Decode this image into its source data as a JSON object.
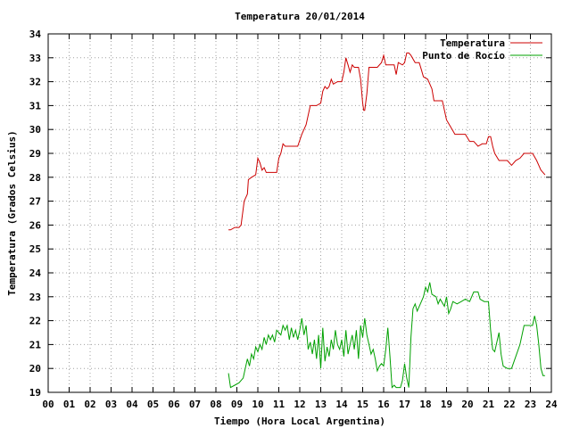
{
  "chart_data": {
    "type": "line",
    "title": "Temperatura 20/01/2014",
    "xlabel": "Tiempo (Hora Local Argentina)",
    "ylabel": "Temperatura (Grados Celsius)",
    "xlim": [
      0,
      24
    ],
    "ylim": [
      19,
      34
    ],
    "x_ticks": [
      "00",
      "01",
      "02",
      "03",
      "04",
      "05",
      "06",
      "07",
      "08",
      "09",
      "10",
      "11",
      "12",
      "13",
      "14",
      "15",
      "16",
      "17",
      "18",
      "19",
      "20",
      "21",
      "22",
      "23",
      "24"
    ],
    "y_ticks": [
      19,
      20,
      21,
      22,
      23,
      24,
      25,
      26,
      27,
      28,
      29,
      30,
      31,
      32,
      33,
      34
    ],
    "grid": true,
    "legend_position": "top-right",
    "series": [
      {
        "name": "Temperatura",
        "color": "#cc0000",
        "points": [
          [
            8.6,
            25.8
          ],
          [
            8.7,
            25.8
          ],
          [
            8.9,
            25.9
          ],
          [
            9.1,
            25.9
          ],
          [
            9.2,
            26.0
          ],
          [
            9.35,
            27.0
          ],
          [
            9.5,
            27.3
          ],
          [
            9.55,
            27.9
          ],
          [
            9.7,
            28.0
          ],
          [
            9.9,
            28.1
          ],
          [
            10.0,
            28.8
          ],
          [
            10.1,
            28.6
          ],
          [
            10.2,
            28.3
          ],
          [
            10.3,
            28.4
          ],
          [
            10.4,
            28.2
          ],
          [
            10.6,
            28.2
          ],
          [
            10.9,
            28.2
          ],
          [
            11.0,
            28.8
          ],
          [
            11.1,
            29.0
          ],
          [
            11.2,
            29.4
          ],
          [
            11.3,
            29.3
          ],
          [
            11.4,
            29.3
          ],
          [
            11.7,
            29.3
          ],
          [
            11.9,
            29.3
          ],
          [
            12.1,
            29.8
          ],
          [
            12.3,
            30.2
          ],
          [
            12.5,
            31.0
          ],
          [
            12.8,
            31.0
          ],
          [
            13.0,
            31.1
          ],
          [
            13.1,
            31.6
          ],
          [
            13.2,
            31.8
          ],
          [
            13.3,
            31.7
          ],
          [
            13.4,
            31.8
          ],
          [
            13.5,
            32.1
          ],
          [
            13.6,
            31.9
          ],
          [
            13.8,
            32.0
          ],
          [
            14.0,
            32.0
          ],
          [
            14.1,
            32.4
          ],
          [
            14.2,
            33.0
          ],
          [
            14.3,
            32.7
          ],
          [
            14.4,
            32.4
          ],
          [
            14.5,
            32.7
          ],
          [
            14.6,
            32.6
          ],
          [
            14.8,
            32.6
          ],
          [
            14.9,
            32.1
          ],
          [
            15.0,
            31.1
          ],
          [
            15.05,
            30.8
          ],
          [
            15.1,
            30.8
          ],
          [
            15.2,
            31.5
          ],
          [
            15.3,
            32.6
          ],
          [
            15.5,
            32.6
          ],
          [
            15.7,
            32.6
          ],
          [
            15.9,
            32.8
          ],
          [
            16.0,
            33.1
          ],
          [
            16.1,
            32.7
          ],
          [
            16.3,
            32.7
          ],
          [
            16.5,
            32.7
          ],
          [
            16.6,
            32.3
          ],
          [
            16.7,
            32.8
          ],
          [
            16.9,
            32.7
          ],
          [
            17.0,
            32.8
          ],
          [
            17.1,
            33.2
          ],
          [
            17.2,
            33.2
          ],
          [
            17.3,
            33.1
          ],
          [
            17.5,
            32.8
          ],
          [
            17.7,
            32.8
          ],
          [
            17.8,
            32.5
          ],
          [
            17.9,
            32.2
          ],
          [
            18.1,
            32.1
          ],
          [
            18.3,
            31.7
          ],
          [
            18.4,
            31.2
          ],
          [
            18.6,
            31.2
          ],
          [
            18.8,
            31.2
          ],
          [
            19.0,
            30.4
          ],
          [
            19.2,
            30.1
          ],
          [
            19.4,
            29.8
          ],
          [
            19.7,
            29.8
          ],
          [
            19.9,
            29.8
          ],
          [
            20.1,
            29.5
          ],
          [
            20.3,
            29.5
          ],
          [
            20.5,
            29.3
          ],
          [
            20.7,
            29.4
          ],
          [
            20.9,
            29.4
          ],
          [
            21.0,
            29.7
          ],
          [
            21.1,
            29.7
          ],
          [
            21.2,
            29.3
          ],
          [
            21.3,
            29.0
          ],
          [
            21.5,
            28.7
          ],
          [
            21.7,
            28.7
          ],
          [
            21.9,
            28.7
          ],
          [
            22.1,
            28.5
          ],
          [
            22.3,
            28.7
          ],
          [
            22.5,
            28.8
          ],
          [
            22.7,
            29.0
          ],
          [
            22.9,
            29.0
          ],
          [
            23.1,
            29.0
          ],
          [
            23.3,
            28.7
          ],
          [
            23.4,
            28.5
          ],
          [
            23.5,
            28.3
          ],
          [
            23.6,
            28.2
          ],
          [
            23.7,
            28.1
          ]
        ]
      },
      {
        "name": "Punto de Rocío",
        "color": "#00a000",
        "points": [
          [
            8.6,
            19.8
          ],
          [
            8.7,
            19.2
          ],
          [
            8.9,
            19.3
          ],
          [
            9.1,
            19.4
          ],
          [
            9.3,
            19.6
          ],
          [
            9.4,
            20.0
          ],
          [
            9.5,
            20.4
          ],
          [
            9.6,
            20.1
          ],
          [
            9.7,
            20.6
          ],
          [
            9.8,
            20.4
          ],
          [
            9.9,
            20.9
          ],
          [
            10.0,
            20.7
          ],
          [
            10.1,
            21.0
          ],
          [
            10.2,
            20.8
          ],
          [
            10.3,
            21.3
          ],
          [
            10.4,
            21.0
          ],
          [
            10.5,
            21.4
          ],
          [
            10.6,
            21.2
          ],
          [
            10.7,
            21.4
          ],
          [
            10.8,
            21.1
          ],
          [
            10.9,
            21.6
          ],
          [
            11.0,
            21.5
          ],
          [
            11.1,
            21.4
          ],
          [
            11.2,
            21.8
          ],
          [
            11.3,
            21.6
          ],
          [
            11.4,
            21.8
          ],
          [
            11.5,
            21.2
          ],
          [
            11.6,
            21.7
          ],
          [
            11.7,
            21.3
          ],
          [
            11.8,
            21.6
          ],
          [
            11.9,
            21.2
          ],
          [
            12.0,
            21.6
          ],
          [
            12.1,
            22.1
          ],
          [
            12.2,
            21.4
          ],
          [
            12.3,
            21.8
          ],
          [
            12.4,
            20.8
          ],
          [
            12.5,
            21.1
          ],
          [
            12.6,
            20.6
          ],
          [
            12.7,
            21.2
          ],
          [
            12.8,
            20.4
          ],
          [
            12.9,
            21.4
          ],
          [
            13.0,
            20.0
          ],
          [
            13.1,
            21.7
          ],
          [
            13.2,
            20.3
          ],
          [
            13.3,
            20.9
          ],
          [
            13.4,
            20.5
          ],
          [
            13.5,
            21.2
          ],
          [
            13.6,
            20.8
          ],
          [
            13.7,
            21.6
          ],
          [
            13.8,
            21.0
          ],
          [
            13.9,
            20.8
          ],
          [
            14.0,
            21.2
          ],
          [
            14.1,
            20.5
          ],
          [
            14.2,
            21.6
          ],
          [
            14.3,
            20.6
          ],
          [
            14.4,
            21.0
          ],
          [
            14.5,
            21.4
          ],
          [
            14.6,
            20.8
          ],
          [
            14.7,
            21.6
          ],
          [
            14.8,
            20.4
          ],
          [
            14.9,
            21.8
          ],
          [
            15.0,
            21.3
          ],
          [
            15.1,
            22.1
          ],
          [
            15.2,
            21.4
          ],
          [
            15.3,
            21.0
          ],
          [
            15.4,
            20.6
          ],
          [
            15.5,
            20.8
          ],
          [
            15.6,
            20.4
          ],
          [
            15.7,
            19.9
          ],
          [
            15.8,
            20.1
          ],
          [
            15.9,
            20.2
          ],
          [
            16.0,
            20.1
          ],
          [
            16.1,
            20.8
          ],
          [
            16.2,
            21.7
          ],
          [
            16.3,
            20.5
          ],
          [
            16.4,
            19.2
          ],
          [
            16.5,
            19.3
          ],
          [
            16.6,
            19.2
          ],
          [
            16.8,
            19.2
          ],
          [
            16.9,
            19.5
          ],
          [
            17.0,
            20.2
          ],
          [
            17.1,
            19.6
          ],
          [
            17.2,
            19.2
          ],
          [
            17.3,
            21.3
          ],
          [
            17.4,
            22.5
          ],
          [
            17.5,
            22.7
          ],
          [
            17.6,
            22.4
          ],
          [
            17.8,
            22.8
          ],
          [
            17.9,
            23.0
          ],
          [
            18.0,
            23.4
          ],
          [
            18.1,
            23.2
          ],
          [
            18.2,
            23.6
          ],
          [
            18.3,
            23.1
          ],
          [
            18.5,
            23.0
          ],
          [
            18.6,
            22.7
          ],
          [
            18.7,
            22.9
          ],
          [
            18.9,
            22.6
          ],
          [
            19.0,
            23.0
          ],
          [
            19.1,
            22.3
          ],
          [
            19.2,
            22.5
          ],
          [
            19.3,
            22.8
          ],
          [
            19.5,
            22.7
          ],
          [
            19.7,
            22.8
          ],
          [
            19.9,
            22.9
          ],
          [
            20.1,
            22.8
          ],
          [
            20.3,
            23.2
          ],
          [
            20.5,
            23.2
          ],
          [
            20.6,
            22.9
          ],
          [
            20.8,
            22.8
          ],
          [
            21.0,
            22.8
          ],
          [
            21.1,
            21.6
          ],
          [
            21.2,
            20.8
          ],
          [
            21.3,
            20.7
          ],
          [
            21.4,
            21.1
          ],
          [
            21.5,
            21.5
          ],
          [
            21.6,
            20.6
          ],
          [
            21.7,
            20.1
          ],
          [
            21.9,
            20.0
          ],
          [
            22.1,
            20.0
          ],
          [
            22.3,
            20.5
          ],
          [
            22.5,
            21.0
          ],
          [
            22.7,
            21.8
          ],
          [
            22.9,
            21.8
          ],
          [
            23.1,
            21.8
          ],
          [
            23.2,
            22.2
          ],
          [
            23.3,
            21.8
          ],
          [
            23.4,
            21.0
          ],
          [
            23.5,
            20.0
          ],
          [
            23.6,
            19.7
          ],
          [
            23.7,
            19.7
          ]
        ]
      }
    ]
  }
}
